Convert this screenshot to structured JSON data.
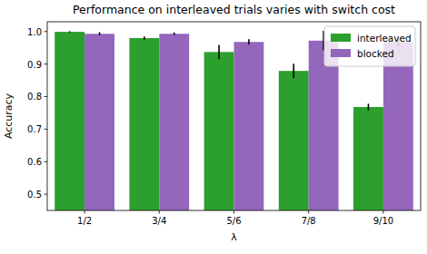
{
  "chart_data": {
    "type": "bar",
    "title": "Performance on interleaved trials varies with switch cost",
    "x_label": "λ",
    "y_label": "Accuracy",
    "categories": [
      "1/2",
      "3/4",
      "5/6",
      "7/8",
      "9/10"
    ],
    "series": [
      {
        "name": "interleaved",
        "color": "#2ca02c",
        "values": [
          0.999,
          0.98,
          0.937,
          0.879,
          0.768
        ],
        "errors": [
          0.002,
          0.005,
          0.022,
          0.022,
          0.01
        ]
      },
      {
        "name": "blocked",
        "color": "#9467bd",
        "values": [
          0.993,
          0.993,
          0.968,
          0.972,
          0.968
        ],
        "errors": [
          0.005,
          0.004,
          0.008,
          0.03,
          0.012
        ]
      }
    ],
    "ylim": [
      0.45,
      1.03
    ],
    "yticks": [
      0.5,
      0.6,
      0.7,
      0.8,
      0.9,
      {
        "value": 1,
        "label": "1.0"
      }
    ],
    "legend": "upper right",
    "grid": false
  }
}
